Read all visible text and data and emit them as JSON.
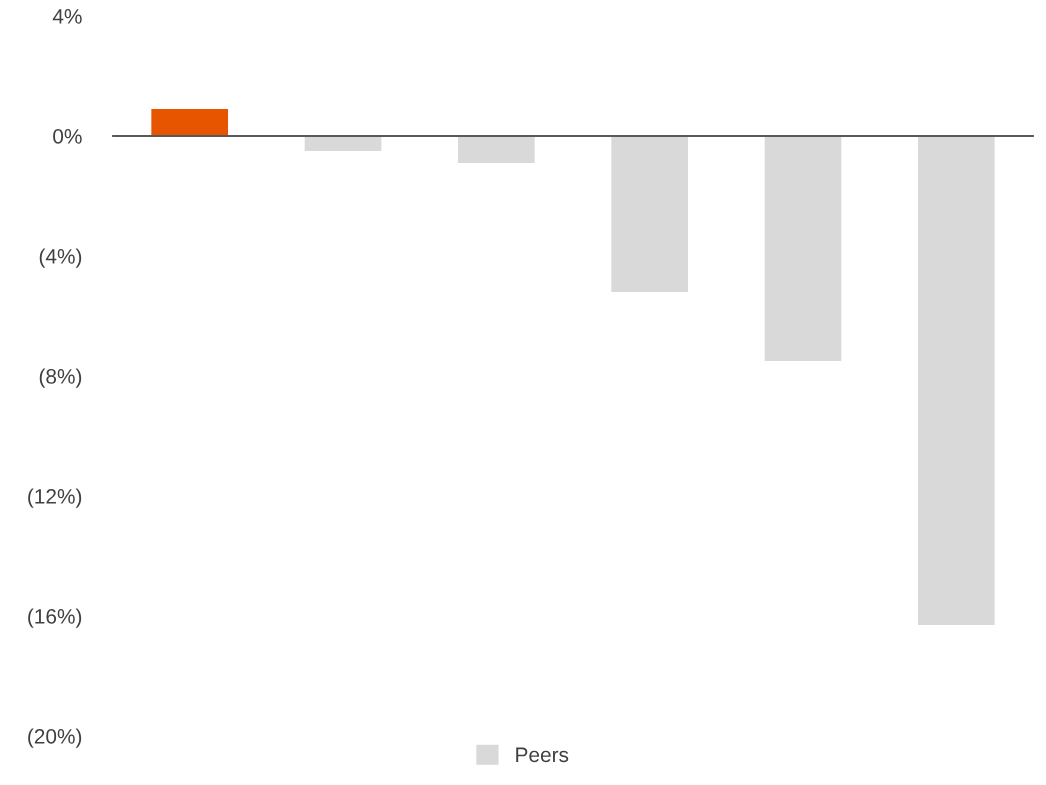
{
  "chart_data": {
    "type": "bar",
    "categories": [
      null,
      null,
      null,
      null,
      null,
      null
    ],
    "series": [
      {
        "color": "#e85500",
        "values": [
          0.9,
          null,
          null,
          null,
          null,
          null
        ]
      },
      {
        "name": "Peers",
        "color": "#d9d9d9",
        "values": [
          null,
          -0.5,
          -0.9,
          -5.2,
          -7.5,
          -16.3
        ]
      }
    ],
    "ylim": [
      -20,
      4
    ],
    "yticks": [
      {
        "value": 4,
        "label": "4%"
      },
      {
        "value": 0,
        "label": "0%"
      },
      {
        "value": -4,
        "label": "(4%)"
      },
      {
        "value": -8,
        "label": "(8%)"
      },
      {
        "value": -12,
        "label": "(12%)"
      },
      {
        "value": -16,
        "label": "(16%)"
      },
      {
        "value": -20,
        "label": "(20%)"
      }
    ],
    "legend": "bottom"
  }
}
